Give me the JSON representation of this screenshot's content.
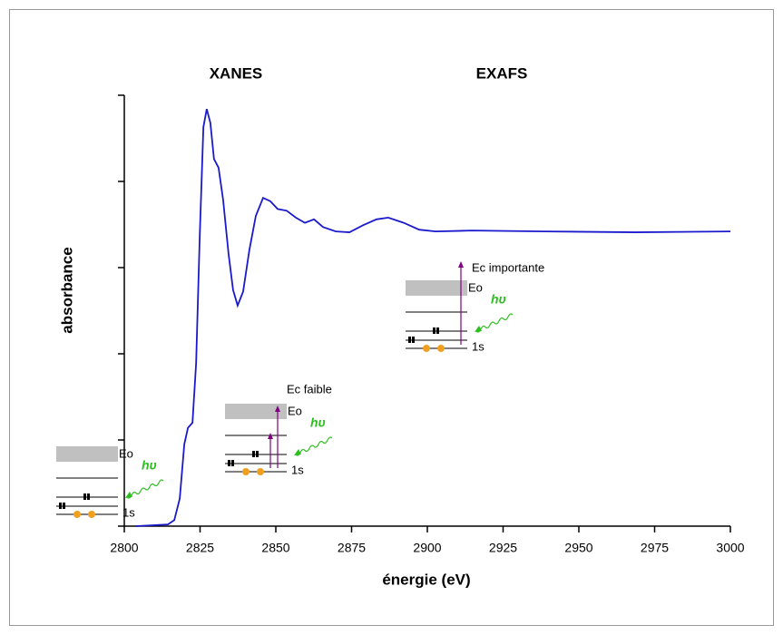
{
  "chart_data": {
    "type": "line",
    "x_label": "énergie (eV)",
    "y_label": "absorbance",
    "annotations": [
      "XANES",
      "EXAFS"
    ],
    "insets": [
      {
        "level": "Eo",
        "core": "1s",
        "photon": "hυ"
      },
      {
        "level": "Eo",
        "core": "1s",
        "photon": "hυ",
        "energy": "Ec faible"
      },
      {
        "level": "Eo",
        "core": "1s",
        "photon": "hυ",
        "energy": "Ec importante"
      }
    ],
    "x": [
      2803.9,
      2814.4,
      2816.5,
      2818.3,
      2819.8,
      2821.0,
      2822.5,
      2823.7,
      2824.9,
      2826.1,
      2827.2,
      2828.4,
      2829.6,
      2831.1,
      2832.6,
      2834.4,
      2835.9,
      2837.4,
      2839.2,
      2841.3,
      2843.4,
      2845.8,
      2848.2,
      2850.6,
      2853.6,
      2856.6,
      2859.6,
      2862.6,
      2865.6,
      2869.8,
      2874.3,
      2878.7,
      2883.2,
      2887.1,
      2892.2,
      2897.3,
      2902.7,
      2914.7,
      2938.6,
      2968.6,
      3000
    ],
    "series": [
      {
        "color": "#1a1acc",
        "values": [
          0.0,
          0.02,
          0.07,
          0.32,
          0.95,
          1.14,
          1.2,
          1.89,
          3.37,
          4.63,
          4.84,
          4.68,
          4.26,
          4.16,
          3.79,
          3.16,
          2.74,
          2.56,
          2.72,
          3.21,
          3.6,
          3.81,
          3.77,
          3.68,
          3.66,
          3.58,
          3.52,
          3.56,
          3.47,
          3.42,
          3.41,
          3.49,
          3.56,
          3.58,
          3.52,
          3.44,
          3.42,
          3.43,
          3.42,
          3.41,
          3.42
        ]
      }
    ],
    "xlim": [
      2800,
      3000
    ],
    "xticks": [
      2800,
      2825,
      2850,
      2875,
      2900,
      2925,
      2950,
      2975,
      3000
    ],
    "ylim": [
      0,
      5
    ],
    "yticks": [
      0,
      1,
      2,
      3,
      4,
      5
    ]
  }
}
